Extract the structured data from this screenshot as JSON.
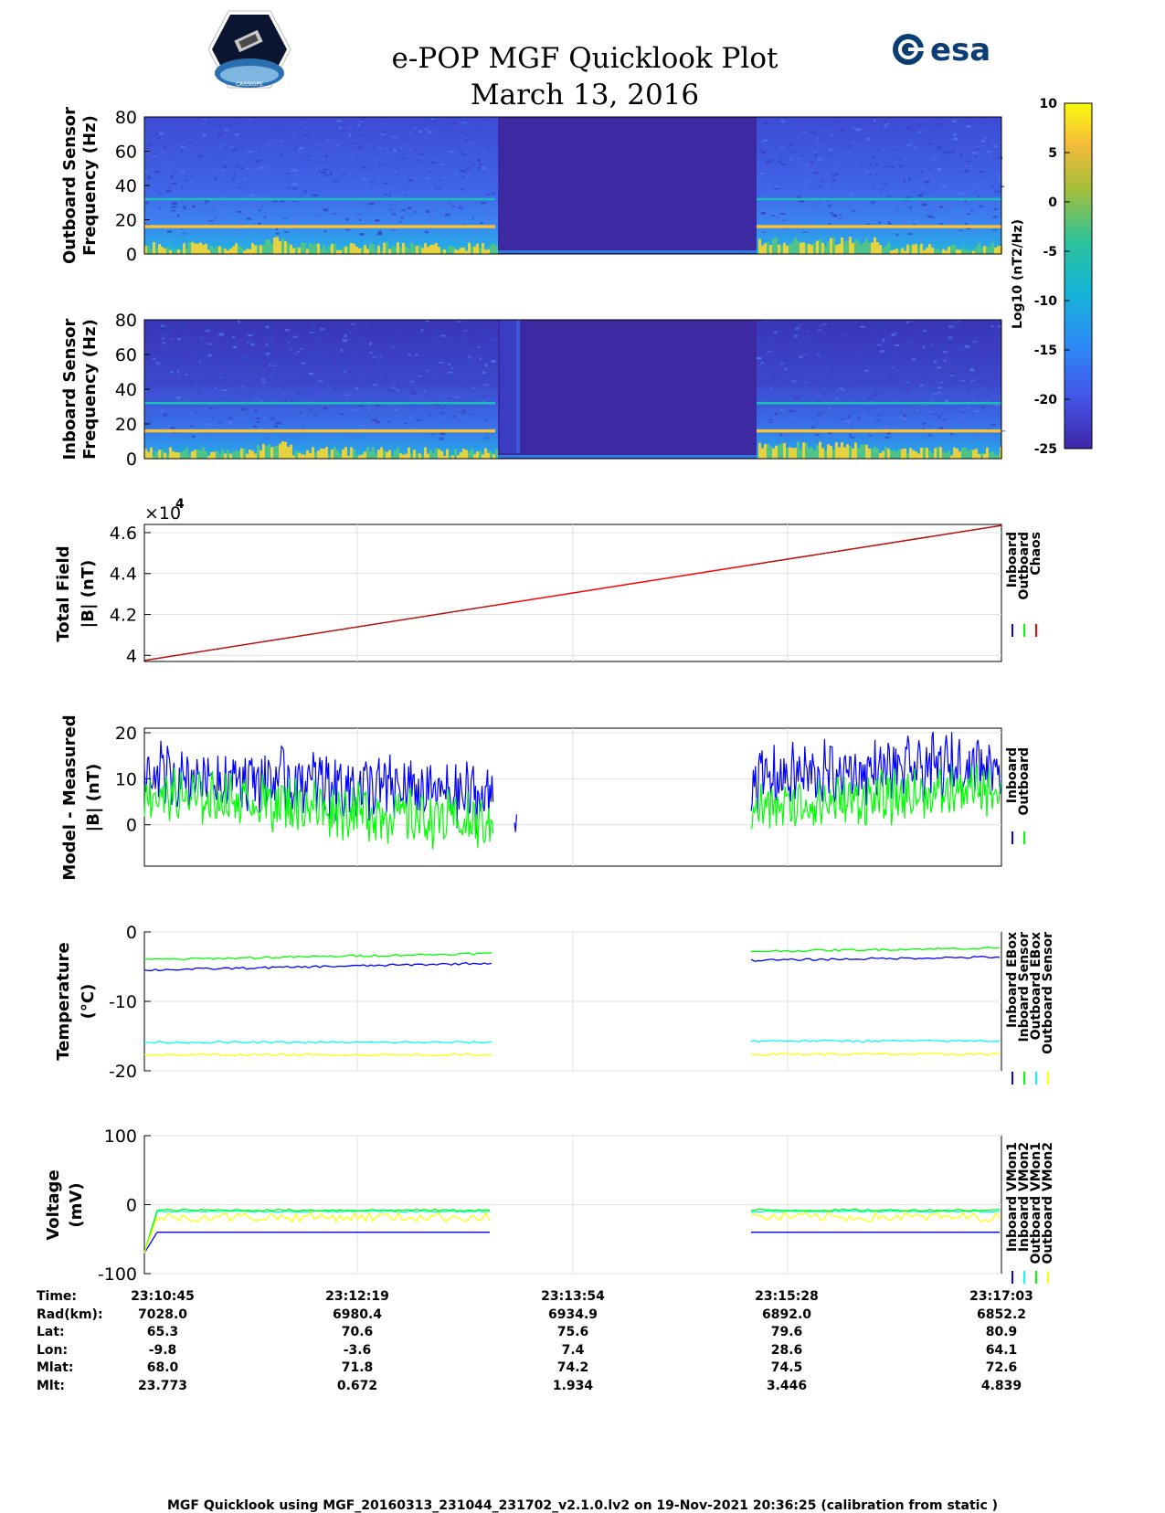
{
  "header": {
    "title": "e-POP MGF Quicklook Plot",
    "date": "March 13, 2016",
    "logo_right_text": "esa",
    "logo_left_text": "CASSIOPE"
  },
  "colors": {
    "blue": "#0000ff",
    "green": "#00ff00",
    "red": "#ff0000",
    "cyan": "#00ffff",
    "yellow": "#ffff00",
    "spec_bg": "#3b44c4",
    "gap": "#3d2aa3"
  },
  "panels": {
    "outboard": {
      "ylabel1": "Outboard Sensor",
      "ylabel2": "Frequency (Hz)",
      "yticks": [
        "80",
        "60",
        "40",
        "20",
        "0"
      ]
    },
    "inboard": {
      "ylabel1": "Inboard Sensor",
      "ylabel2": "Frequency (Hz)",
      "yticks": [
        "80",
        "60",
        "40",
        "20",
        "0"
      ]
    },
    "colorbar": {
      "label": "Log10 (nT2/Hz)",
      "ticks": [
        "10",
        "5",
        "0",
        "-5",
        "-10",
        "-15",
        "-20",
        "-25"
      ]
    },
    "total_field": {
      "ylabel1": "Total Field",
      "ylabel2": "|B| (nT)",
      "multiplier": "×10",
      "exponent": "4",
      "yticks": [
        "4.6",
        "4.4",
        "4.2",
        "4"
      ],
      "legend": [
        "Inboard",
        "Outboard",
        "Chaos"
      ]
    },
    "model": {
      "ylabel1": "Model - Measured",
      "ylabel2": "|B| (nT)",
      "yticks": [
        "20",
        "10",
        "0"
      ],
      "legend": [
        "Inboard",
        "Outboard"
      ]
    },
    "temperature": {
      "ylabel1": "Temperature",
      "ylabel2": "(°C)",
      "yticks": [
        "0",
        "-10",
        "-20"
      ],
      "legend": [
        "Inboard EBox",
        "Inboard Sensor",
        "Outboard EBox",
        "Outboard Sensor"
      ]
    },
    "voltage": {
      "ylabel1": "Voltage",
      "ylabel2": "(mV)",
      "yticks": [
        "100",
        "0",
        "-100"
      ],
      "legend": [
        "Inboard VMon1",
        "Inboard VMon2",
        "Outboard VMon1",
        "Outboard VMon2"
      ]
    }
  },
  "chart_data": [
    {
      "type": "heatmap",
      "name": "Outboard Sensor spectrogram",
      "ylabel": "Outboard Sensor Frequency (Hz)",
      "ylim": [
        0,
        80
      ],
      "colorbar_range": [
        -25,
        10
      ],
      "lines_hz": [
        16,
        32
      ],
      "data_gap": [
        "23:13:28",
        "23:15:03"
      ]
    },
    {
      "type": "heatmap",
      "name": "Inboard Sensor spectrogram",
      "ylabel": "Inboard Sensor Frequency (Hz)",
      "ylim": [
        0,
        80
      ],
      "colorbar_range": [
        -25,
        10
      ],
      "lines_hz": [
        16,
        32
      ],
      "data_gap": [
        "23:13:28",
        "23:15:03"
      ]
    },
    {
      "type": "line",
      "name": "Total Field",
      "ylabel": "Total Field |B| (nT)",
      "ylim": [
        39700,
        46400
      ],
      "x": [
        "23:10:45",
        "23:17:03"
      ],
      "series": [
        {
          "name": "Inboard",
          "values": [
            39750,
            46350
          ]
        },
        {
          "name": "Outboard",
          "values": [
            39750,
            46350
          ]
        },
        {
          "name": "Chaos",
          "values": [
            39750,
            46350
          ]
        }
      ]
    },
    {
      "type": "line",
      "name": "Model - Measured",
      "ylabel": "Model - Measured |B| (nT)",
      "ylim": [
        -9,
        21
      ],
      "series": [
        {
          "name": "Inboard",
          "range_start": [
            2,
            17
          ],
          "range_end": [
            5,
            20
          ],
          "mean_start": 10,
          "mean_end": 13
        },
        {
          "name": "Outboard",
          "range_start": [
            -1,
            11
          ],
          "range_end": [
            3,
            12
          ],
          "mean_start": 6,
          "mean_end": 7
        }
      ]
    },
    {
      "type": "line",
      "name": "Temperature",
      "ylabel": "Temperature (°C)",
      "ylim": [
        -20,
        0
      ],
      "series": [
        {
          "name": "Inboard EBox",
          "values_seg1": [
            -5.5,
            -4.5
          ],
          "values_seg2": [
            -4.1,
            -3.6
          ]
        },
        {
          "name": "Inboard Sensor",
          "values_seg1": [
            -4.0,
            -3.1
          ],
          "values_seg2": [
            -2.8,
            -2.3
          ]
        },
        {
          "name": "Outboard EBox",
          "values_seg1": [
            -15.9,
            -15.9
          ],
          "values_seg2": [
            -15.7,
            -15.7
          ]
        },
        {
          "name": "Outboard Sensor",
          "values_seg1": [
            -17.7,
            -17.7
          ],
          "values_seg2": [
            -17.6,
            -17.6
          ]
        }
      ]
    },
    {
      "type": "line",
      "name": "Voltage",
      "ylabel": "Voltage (mV)",
      "ylim": [
        -100,
        100
      ],
      "series": [
        {
          "name": "Inboard VMon1",
          "value": -40
        },
        {
          "name": "Inboard VMon2",
          "value": -10
        },
        {
          "name": "Outboard VMon1",
          "value": -8
        },
        {
          "name": "Outboard VMon2",
          "value": -18
        }
      ]
    }
  ],
  "xaxis": {
    "rows": [
      {
        "label": "Time:",
        "values": [
          "23:10:45",
          "23:12:19",
          "23:13:54",
          "23:15:28",
          "23:17:03"
        ]
      },
      {
        "label": "Rad(km):",
        "values": [
          "7028.0",
          "6980.4",
          "6934.9",
          "6892.0",
          "6852.2"
        ]
      },
      {
        "label": "Lat:",
        "values": [
          "65.3",
          "70.6",
          "75.6",
          "79.6",
          "80.9"
        ]
      },
      {
        "label": "Lon:",
        "values": [
          "-9.8",
          "-3.6",
          "7.4",
          "28.6",
          "64.1"
        ]
      },
      {
        "label": "Mlat:",
        "values": [
          "68.0",
          "71.8",
          "74.2",
          "74.5",
          "72.6"
        ]
      },
      {
        "label": "Mlt:",
        "values": [
          "23.773",
          "0.672",
          "1.934",
          "3.446",
          "4.839"
        ]
      }
    ]
  },
  "footer": "MGF Quicklook using MGF_20160313_231044_231702_v2.1.0.lv2 on 19-Nov-2021 20:36:25 (calibration from static )"
}
